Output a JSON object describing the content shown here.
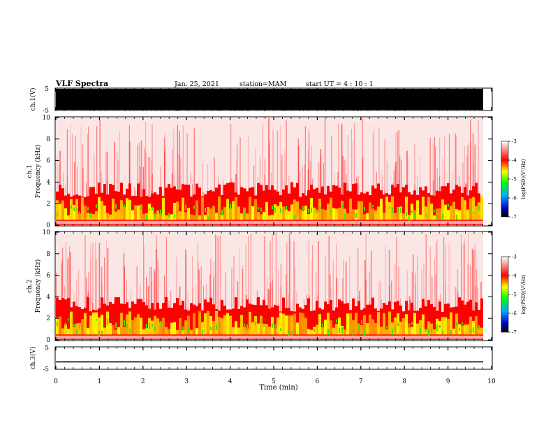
{
  "header": {
    "title": "VLF Spectra",
    "date": "Jan. 25, 2021",
    "station": "station=MAM",
    "start": "start  UT =  4 : 10 : 1"
  },
  "chart_data": [
    {
      "type": "line",
      "panel": "waveform-ch1",
      "ylabel": "ch.1(V)",
      "ylim": [
        -5,
        5
      ],
      "yticks": [
        "5",
        "-5"
      ],
      "xlim": [
        0,
        10
      ],
      "note": "dense black waveform filling the range from 0 to ~9.85 min"
    },
    {
      "type": "heatmap",
      "panel": "spectrogram-ch1",
      "ylabel": "ch.1\nFrequency  (kHz)",
      "ylim": [
        0,
        10
      ],
      "yticks": [
        "0",
        "2",
        "4",
        "6",
        "8",
        "10"
      ],
      "xlim": [
        0,
        10
      ],
      "colorbar": {
        "label": "log(PSD)(V²/Hz)",
        "range": [
          -7,
          -3
        ],
        "ticks": [
          "-3",
          "-4",
          "-5",
          "-6",
          "-7"
        ]
      }
    },
    {
      "type": "heatmap",
      "panel": "spectrogram-ch2",
      "ylabel": "ch.2\nFrequency  (kHz)",
      "ylim": [
        0,
        10
      ],
      "yticks": [
        "0",
        "2",
        "4",
        "6",
        "8",
        "10"
      ],
      "xlim": [
        0,
        10
      ],
      "colorbar": {
        "label": "log(PSD)(V²/Hz)",
        "range": [
          -7,
          -3
        ],
        "ticks": [
          "-3",
          "-4",
          "-5",
          "-6",
          "-7"
        ]
      }
    },
    {
      "type": "line",
      "panel": "waveform-ch3",
      "ylabel": "ch.3(V)",
      "ylim": [
        -5,
        5
      ],
      "yticks": [
        "5",
        "-5"
      ],
      "xlim": [
        0,
        10
      ],
      "series": [
        {
          "values": [
            -1.8
          ]
        }
      ]
    }
  ],
  "xaxis": {
    "label": "Time  (min)",
    "ticks": [
      "0",
      "1",
      "2",
      "3",
      "4",
      "5",
      "6",
      "7",
      "8",
      "9",
      "10"
    ]
  },
  "colors": {
    "strong": "#ffff00",
    "mid": "#00ff00",
    "weak": "#ff0000",
    "floor": "#ffffff"
  }
}
